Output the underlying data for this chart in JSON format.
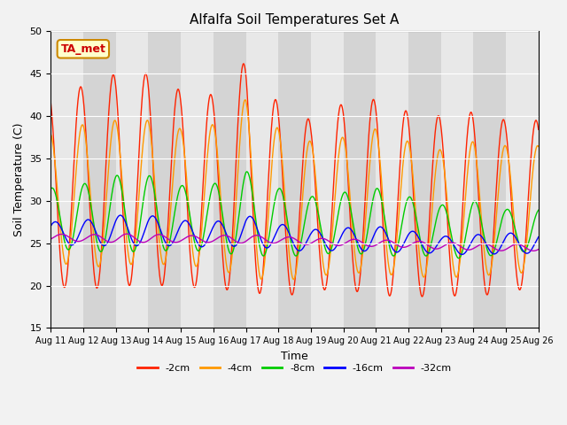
{
  "title": "Alfalfa Soil Temperatures Set A",
  "ylabel": "Soil Temperature (C)",
  "xlabel": "Time",
  "ylim": [
    15,
    50
  ],
  "xlim": [
    0,
    15
  ],
  "annotation": "TA_met",
  "bg_color": "#e8e8e8",
  "bg_color_alt": "#d4d4d4",
  "legend": [
    "-2cm",
    "-4cm",
    "-8cm",
    "-16cm",
    "-32cm"
  ],
  "colors": [
    "#ff2200",
    "#ff9900",
    "#00cc00",
    "#0000ff",
    "#bb00bb"
  ],
  "xtick_labels": [
    "Aug 11",
    "Aug 12",
    "Aug 13",
    "Aug 14",
    "Aug 15",
    "Aug 16",
    "Aug 17",
    "Aug 18",
    "Aug 19",
    "Aug 20",
    "Aug 21",
    "Aug 22",
    "Aug 23",
    "Aug 24",
    "Aug 25",
    "Aug 26"
  ],
  "ytick_labels": [
    "15",
    "20",
    "25",
    "30",
    "35",
    "40",
    "45",
    "50"
  ],
  "n_days": 15,
  "amplitudes_2cm": [
    11.5,
    12.0,
    12.5,
    12.5,
    11.5,
    11.5,
    13.5,
    11.5,
    10.0,
    11.0,
    11.5,
    11.0,
    10.5,
    11.0,
    10.0
  ],
  "amplitudes_4cm": [
    7.5,
    8.5,
    8.5,
    8.5,
    8.0,
    8.5,
    10.5,
    9.0,
    8.0,
    8.0,
    8.5,
    8.0,
    7.5,
    8.0,
    7.5
  ],
  "amplitudes_8cm": [
    3.5,
    4.0,
    4.5,
    4.5,
    3.8,
    4.0,
    5.0,
    4.0,
    3.5,
    3.5,
    4.0,
    3.5,
    3.0,
    3.5,
    2.5
  ],
  "amplitudes_16cm": [
    1.3,
    1.5,
    1.8,
    1.8,
    1.5,
    1.5,
    1.8,
    1.5,
    1.3,
    1.3,
    1.5,
    1.3,
    1.0,
    1.2,
    1.2
  ],
  "amplitudes_32cm": [
    0.4,
    0.4,
    0.5,
    0.5,
    0.4,
    0.4,
    0.5,
    0.4,
    0.4,
    0.4,
    0.4,
    0.4,
    0.4,
    0.4,
    0.4
  ],
  "mean_2cm": [
    31.5,
    31.5,
    32.5,
    32.5,
    31.5,
    31.0,
    33.0,
    30.0,
    29.5,
    30.5,
    30.5,
    29.5,
    29.5,
    29.5,
    29.5
  ],
  "mean_4cm": [
    30.5,
    30.5,
    31.0,
    31.0,
    30.5,
    30.5,
    31.5,
    29.5,
    29.0,
    29.5,
    30.0,
    29.0,
    28.5,
    29.0,
    29.0
  ],
  "mean_8cm": [
    28.0,
    28.0,
    28.5,
    28.5,
    28.0,
    28.0,
    28.5,
    27.5,
    27.0,
    27.5,
    27.5,
    27.0,
    26.5,
    26.5,
    26.5
  ],
  "mean_16cm": [
    26.2,
    26.2,
    26.5,
    26.5,
    26.2,
    26.0,
    26.5,
    25.8,
    25.3,
    25.5,
    25.5,
    25.2,
    24.8,
    24.8,
    25.0
  ],
  "mean_32cm": [
    25.7,
    25.6,
    25.6,
    25.6,
    25.5,
    25.5,
    25.5,
    25.4,
    25.2,
    25.1,
    25.0,
    24.9,
    24.7,
    24.6,
    24.5
  ]
}
